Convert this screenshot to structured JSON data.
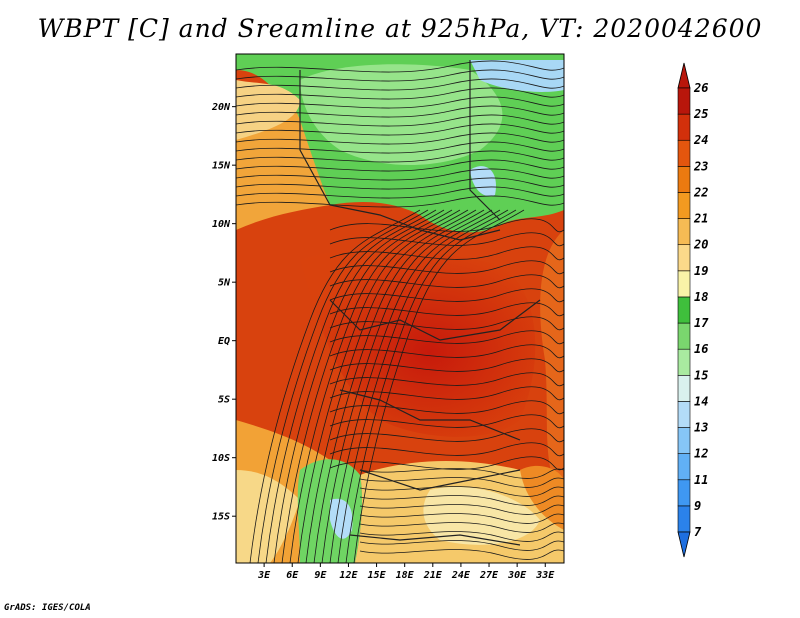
{
  "title": "WBPT [C] and Sreamline at 925hPa, VT: 2020042600",
  "credit": "GrADS: IGES/COLA",
  "map": {
    "lat_labels": [
      "20N",
      "15N",
      "10N",
      "5N",
      "EQ",
      "5S",
      "10S",
      "15S"
    ],
    "lat_values": [
      20,
      15,
      10,
      5,
      0,
      -5,
      -10,
      -15
    ],
    "lon_labels": [
      "3E",
      "6E",
      "9E",
      "12E",
      "15E",
      "18E",
      "21E",
      "24E",
      "27E",
      "30E",
      "33E"
    ],
    "lon_values": [
      3,
      6,
      9,
      12,
      15,
      18,
      21,
      24,
      27,
      30,
      33
    ],
    "lon_range": [
      0,
      35
    ],
    "lat_range": [
      -19,
      24.5
    ]
  },
  "colorbar": {
    "labels": [
      "7",
      "9",
      "11",
      "12",
      "13",
      "14",
      "15",
      "16",
      "17",
      "18",
      "19",
      "20",
      "21",
      "22",
      "23",
      "24",
      "25",
      "26"
    ],
    "colors": [
      "#1e6fe0",
      "#2b82ea",
      "#3f98f2",
      "#61b0f5",
      "#86c6f7",
      "#b3dcf8",
      "#d9f1ee",
      "#a9eaa0",
      "#7ad66e",
      "#3fbf3c",
      "#f9f3a8",
      "#fbd98a",
      "#f6bb54",
      "#f39a20",
      "#ec7a10",
      "#e4560e",
      "#d2300b",
      "#b8160b"
    ],
    "arrow_low": "#1e6fe0",
    "arrow_high": "#b8160b"
  }
}
